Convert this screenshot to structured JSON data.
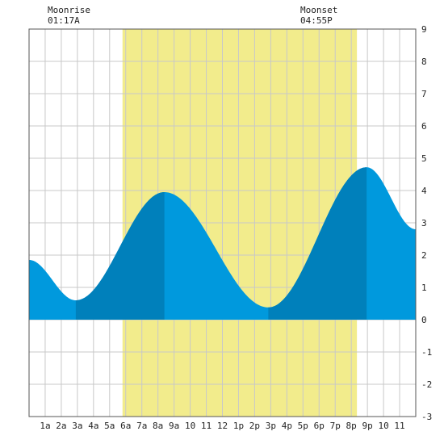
{
  "moon": {
    "rise_label": "Moonrise",
    "rise_time": "01:17A",
    "set_label": "Moonset",
    "set_time": "04:55P"
  },
  "colors": {
    "daylight": "#f2ec8c",
    "tide_light": "#0099dd",
    "tide_dark": "#0080bb",
    "grid": "#c8c8c8",
    "frame": "#555555",
    "background": "#ffffff"
  },
  "chart_data": {
    "type": "area",
    "title": "",
    "xlabel": "",
    "ylabel": "",
    "xlim": [
      0,
      24
    ],
    "ylim": [
      -3,
      9
    ],
    "yticks": [
      -3,
      -2,
      -1,
      0,
      1,
      2,
      3,
      4,
      5,
      6,
      7,
      8,
      9
    ],
    "xticks": [
      {
        "x": 1,
        "label": "1a"
      },
      {
        "x": 2,
        "label": "2a"
      },
      {
        "x": 3,
        "label": "3a"
      },
      {
        "x": 4,
        "label": "4a"
      },
      {
        "x": 5,
        "label": "5a"
      },
      {
        "x": 6,
        "label": "6a"
      },
      {
        "x": 7,
        "label": "7a"
      },
      {
        "x": 8,
        "label": "8a"
      },
      {
        "x": 9,
        "label": "9a"
      },
      {
        "x": 10,
        "label": "10"
      },
      {
        "x": 11,
        "label": "11"
      },
      {
        "x": 12,
        "label": "12"
      },
      {
        "x": 13,
        "label": "1p"
      },
      {
        "x": 14,
        "label": "2p"
      },
      {
        "x": 15,
        "label": "3p"
      },
      {
        "x": 16,
        "label": "4p"
      },
      {
        "x": 17,
        "label": "5p"
      },
      {
        "x": 18,
        "label": "6p"
      },
      {
        "x": 19,
        "label": "7p"
      },
      {
        "x": 20,
        "label": "8p"
      },
      {
        "x": 21,
        "label": "9p"
      },
      {
        "x": 22,
        "label": "10"
      },
      {
        "x": 23,
        "label": "11"
      }
    ],
    "daylight": {
      "start": 5.8,
      "end": 20.35
    },
    "extremes": [
      {
        "x": 0.0,
        "y": 1.85
      },
      {
        "x": 2.9,
        "y": 0.6
      },
      {
        "x": 8.4,
        "y": 3.95
      },
      {
        "x": 14.85,
        "y": 0.38
      },
      {
        "x": 20.95,
        "y": 4.72
      },
      {
        "x": 24.0,
        "y": 2.8
      }
    ],
    "series": [
      {
        "x": [
          0,
          0.5,
          1,
          1.5,
          2,
          2.5,
          2.9,
          3.5,
          4,
          4.5,
          5,
          5.5,
          6,
          6.5,
          7,
          7.5,
          8,
          8.4,
          9,
          9.5,
          10,
          10.5,
          11,
          11.5,
          12,
          12.5,
          13,
          13.5,
          14,
          14.5,
          14.85,
          15.5,
          16,
          16.5,
          17,
          17.5,
          18,
          18.5,
          19,
          19.5,
          20,
          20.5,
          20.95,
          21.5,
          22,
          22.5,
          23,
          23.5,
          24
        ],
        "y": [
          1.85,
          1.6,
          1.3,
          1.05,
          0.8,
          0.65,
          0.6,
          0.8,
          1.2,
          1.75,
          2.3,
          2.8,
          3.2,
          3.5,
          3.75,
          3.9,
          3.95,
          3.95,
          3.75,
          3.35,
          2.8,
          2.2,
          1.65,
          1.2,
          0.85,
          0.62,
          0.48,
          0.42,
          0.39,
          0.38,
          0.38,
          0.6,
          1.2,
          1.85,
          2.5,
          3.1,
          3.6,
          4.05,
          4.35,
          4.6,
          4.7,
          4.72,
          4.72,
          4.58,
          4.3,
          3.9,
          3.5,
          3.05,
          2.8
        ]
      }
    ],
    "dark_bands": [
      [
        2.9,
        8.4
      ],
      [
        14.85,
        20.95
      ]
    ]
  }
}
